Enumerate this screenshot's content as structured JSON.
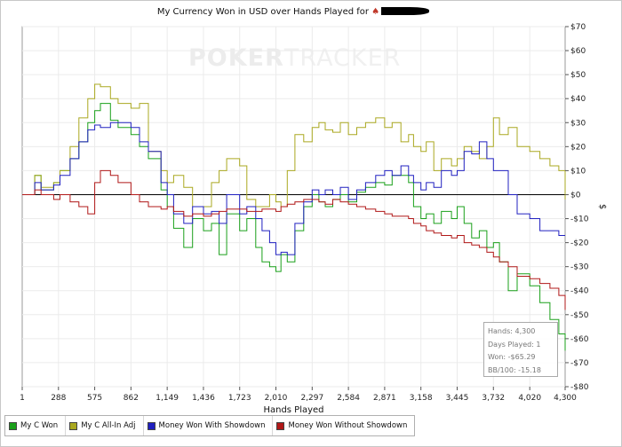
{
  "chart_data": {
    "type": "line",
    "title": "My Currency Won in USD over Hands Played for",
    "xlabel": "Hands Played",
    "ylabel": "$",
    "xlim": [
      1,
      4300
    ],
    "ylim": [
      -80,
      70
    ],
    "x_ticks": [
      1,
      288,
      575,
      862,
      1149,
      1436,
      1723,
      2010,
      2297,
      2584,
      2871,
      3158,
      3445,
      3732,
      4020,
      4300
    ],
    "x_tick_labels": [
      "1",
      "288",
      "575",
      "862",
      "1,149",
      "1,436",
      "1,723",
      "2,010",
      "2,297",
      "2,584",
      "2,871",
      "3,158",
      "3,445",
      "3,732",
      "4,020",
      "4,300"
    ],
    "y_ticks": [
      70,
      60,
      50,
      40,
      30,
      20,
      10,
      0,
      -10,
      -20,
      -30,
      -40,
      -50,
      -60,
      -70,
      -80
    ],
    "y_tick_labels": [
      "$70",
      "$60",
      "$50",
      "$40",
      "$30",
      "$20",
      "$10",
      "$0",
      "-$10",
      "-$20",
      "-$30",
      "-$40",
      "-$50",
      "-$60",
      "-$70",
      "-$80"
    ],
    "grid": true,
    "legend_position": "bottom-left",
    "series": [
      {
        "name": "My C Won",
        "color": "#1aa01a",
        "x": [
          1,
          100,
          150,
          250,
          300,
          380,
          450,
          520,
          575,
          620,
          700,
          760,
          862,
          930,
          1000,
          1100,
          1149,
          1200,
          1280,
          1350,
          1436,
          1500,
          1560,
          1620,
          1723,
          1780,
          1850,
          1900,
          1960,
          2010,
          2050,
          2100,
          2160,
          2230,
          2297,
          2350,
          2400,
          2460,
          2520,
          2584,
          2650,
          2720,
          2800,
          2871,
          2930,
          3000,
          3060,
          3100,
          3158,
          3200,
          3260,
          3320,
          3400,
          3445,
          3500,
          3560,
          3620,
          3680,
          3732,
          3780,
          3850,
          3920,
          4020,
          4100,
          4180,
          4250,
          4300
        ],
        "y": [
          0,
          8,
          2,
          5,
          10,
          15,
          22,
          30,
          35,
          38,
          31,
          28,
          25,
          20,
          15,
          2,
          -5,
          -14,
          -22,
          -10,
          -15,
          -12,
          -25,
          -8,
          -15,
          -10,
          -22,
          -28,
          -30,
          -32,
          -25,
          -28,
          -15,
          -5,
          0,
          -3,
          -5,
          -2,
          0,
          -3,
          1,
          3,
          5,
          4,
          8,
          8,
          5,
          -5,
          -10,
          -8,
          -12,
          -7,
          -10,
          -5,
          -12,
          -18,
          -15,
          -22,
          -20,
          -28,
          -40,
          -33,
          -38,
          -45,
          -52,
          -58,
          -65
        ]
      },
      {
        "name": "My C All-In Adj",
        "color": "#aaa820",
        "x": [
          1,
          100,
          150,
          250,
          300,
          380,
          450,
          520,
          575,
          620,
          700,
          760,
          862,
          930,
          1000,
          1100,
          1149,
          1200,
          1280,
          1350,
          1436,
          1500,
          1560,
          1620,
          1723,
          1780,
          1850,
          1900,
          1960,
          2010,
          2050,
          2100,
          2160,
          2230,
          2297,
          2350,
          2400,
          2460,
          2520,
          2584,
          2650,
          2720,
          2800,
          2871,
          2930,
          3000,
          3060,
          3100,
          3158,
          3200,
          3260,
          3320,
          3400,
          3445,
          3500,
          3560,
          3620,
          3680,
          3732,
          3780,
          3850,
          3920,
          4020,
          4100,
          4180,
          4250,
          4300
        ],
        "y": [
          0,
          8,
          3,
          5,
          10,
          20,
          32,
          40,
          46,
          45,
          40,
          38,
          36,
          38,
          18,
          10,
          5,
          8,
          3,
          -5,
          -5,
          5,
          10,
          15,
          12,
          -2,
          -5,
          -5,
          0,
          -3,
          -5,
          10,
          25,
          22,
          28,
          30,
          27,
          26,
          30,
          25,
          28,
          30,
          32,
          28,
          30,
          22,
          25,
          20,
          18,
          22,
          10,
          15,
          12,
          15,
          20,
          18,
          15,
          20,
          32,
          25,
          28,
          20,
          18,
          15,
          12,
          10,
          -2
        ]
      },
      {
        "name": "Money Won With Showdown",
        "color": "#2020c0",
        "x": [
          1,
          100,
          150,
          250,
          300,
          380,
          450,
          520,
          575,
          620,
          700,
          760,
          862,
          930,
          1000,
          1100,
          1149,
          1200,
          1280,
          1350,
          1436,
          1500,
          1560,
          1620,
          1723,
          1780,
          1850,
          1900,
          1960,
          2010,
          2050,
          2100,
          2160,
          2230,
          2297,
          2350,
          2400,
          2460,
          2520,
          2584,
          2650,
          2720,
          2800,
          2871,
          2930,
          3000,
          3060,
          3100,
          3158,
          3200,
          3260,
          3320,
          3400,
          3445,
          3500,
          3560,
          3620,
          3680,
          3732,
          3780,
          3850,
          3920,
          4020,
          4100,
          4180,
          4250,
          4300
        ],
        "y": [
          0,
          5,
          2,
          4,
          8,
          15,
          22,
          27,
          29,
          28,
          30,
          30,
          28,
          22,
          18,
          5,
          0,
          -8,
          -12,
          -5,
          -8,
          -7,
          -12,
          0,
          -8,
          -5,
          -10,
          -15,
          -20,
          -25,
          -24,
          -25,
          -12,
          -3,
          2,
          0,
          2,
          0,
          3,
          -2,
          2,
          5,
          8,
          10,
          8,
          12,
          8,
          5,
          2,
          5,
          3,
          10,
          8,
          10,
          18,
          17,
          22,
          15,
          10,
          10,
          0,
          -8,
          -10,
          -15,
          -15,
          -17,
          -17
        ]
      },
      {
        "name": "Money Won Without Showdown",
        "color": "#b01818",
        "x": [
          1,
          100,
          150,
          250,
          300,
          380,
          450,
          520,
          575,
          620,
          700,
          760,
          862,
          930,
          1000,
          1100,
          1149,
          1200,
          1280,
          1350,
          1436,
          1500,
          1560,
          1620,
          1723,
          1780,
          1850,
          1900,
          1960,
          2010,
          2050,
          2100,
          2160,
          2230,
          2297,
          2350,
          2400,
          2460,
          2520,
          2584,
          2650,
          2720,
          2800,
          2871,
          2930,
          3000,
          3060,
          3100,
          3158,
          3200,
          3260,
          3320,
          3400,
          3445,
          3500,
          3560,
          3620,
          3680,
          3732,
          3780,
          3850,
          3920,
          4020,
          4100,
          4180,
          4250,
          4300
        ],
        "y": [
          0,
          2,
          0,
          -2,
          0,
          -3,
          -5,
          -8,
          5,
          10,
          8,
          5,
          0,
          -3,
          -5,
          -6,
          -5,
          -7,
          -9,
          -8,
          -9,
          -8,
          -7,
          -6,
          -6,
          -7,
          -7,
          -6,
          -6,
          -7,
          -5,
          -4,
          -3,
          -2,
          -2,
          -3,
          -4,
          -2,
          -3,
          -4,
          -5,
          -6,
          -7,
          -8,
          -9,
          -9,
          -10,
          -12,
          -13,
          -15,
          -16,
          -17,
          -18,
          -17,
          -20,
          -21,
          -22,
          -24,
          -26,
          -28,
          -30,
          -34,
          -35,
          -37,
          -39,
          -42,
          -48
        ]
      }
    ]
  },
  "watermark": {
    "bold": "POKER",
    "light": "TRACKER"
  },
  "stats_box": {
    "hands": "Hands: 4,300",
    "days": "Days Played: 1",
    "won": "Won: -$65.29",
    "bb100": "BB/100: -15.18"
  },
  "legend": [
    {
      "label": "My C Won",
      "color": "#1aa01a"
    },
    {
      "label": "My C All-In Adj",
      "color": "#aaa820"
    },
    {
      "label": "Money Won With Showdown",
      "color": "#2020c0"
    },
    {
      "label": "Money Won Without Showdown",
      "color": "#b01818"
    }
  ]
}
